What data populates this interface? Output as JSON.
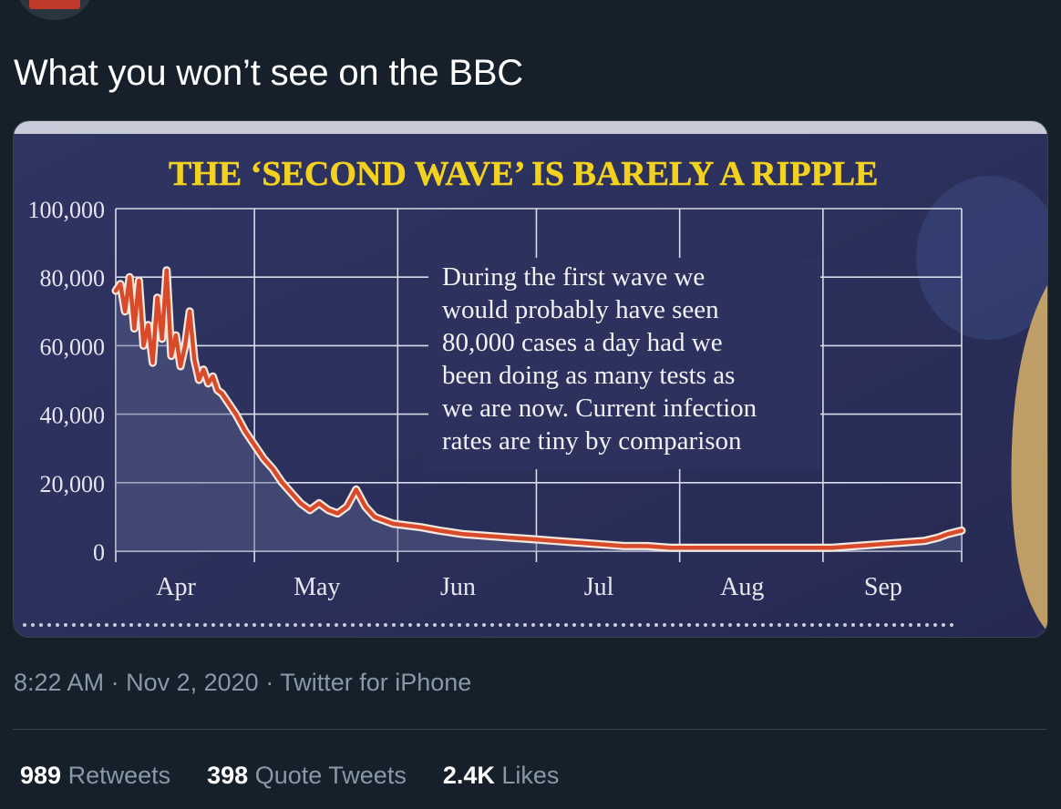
{
  "tweet": {
    "text": "What you won’t see on the BBC",
    "time": "8:22 AM",
    "date": "Nov 2, 2020",
    "source": "Twitter for iPhone",
    "separator": "·"
  },
  "stats": [
    {
      "count": "989",
      "label": "Retweets"
    },
    {
      "count": "398",
      "label": "Quote Tweets"
    },
    {
      "count": "2.4K",
      "label": "Likes"
    }
  ],
  "colors": {
    "background": "#15202b",
    "muted_text": "#8899a6",
    "divider": "#38444d",
    "newspaper_bg": "#2b2f5c",
    "headline_yellow": "#f3d21f",
    "series_red": "#d94a2a"
  },
  "chart_data": {
    "type": "line",
    "title": "THE ‘SECOND WAVE’ IS BARELY A RIPPLE",
    "annotation": [
      "During the first wave we",
      "would probably have seen",
      "80,000 cases a day had we",
      "been doing as many tests as",
      "we are now. Current infection",
      "rates are tiny by comparison"
    ],
    "y_ticks": [
      0,
      20000,
      40000,
      60000,
      80000,
      100000
    ],
    "y_tick_labels": [
      "0",
      "20,000",
      "40,000",
      "60,000",
      "80,000",
      "100,000"
    ],
    "x_tick_labels": [
      "Apr",
      "May",
      "Jun",
      "Jul",
      "Aug",
      "Sep"
    ],
    "ylim": [
      0,
      100000
    ],
    "grid": true,
    "x_unit": "days since 1 Apr",
    "xlim": [
      0,
      183
    ],
    "series": [
      {
        "points": [
          [
            0,
            76000
          ],
          [
            1,
            78000
          ],
          [
            2,
            70000
          ],
          [
            3,
            80000
          ],
          [
            4,
            65000
          ],
          [
            5,
            79000
          ],
          [
            6,
            60000
          ],
          [
            7,
            66000
          ],
          [
            8,
            55000
          ],
          [
            9,
            74000
          ],
          [
            10,
            62000
          ],
          [
            11,
            82000
          ],
          [
            12,
            57000
          ],
          [
            13,
            63000
          ],
          [
            14,
            54000
          ],
          [
            15,
            60000
          ],
          [
            16,
            70000
          ],
          [
            17,
            56000
          ],
          [
            18,
            50000
          ],
          [
            19,
            53000
          ],
          [
            20,
            49000
          ],
          [
            21,
            51000
          ],
          [
            22,
            47000
          ],
          [
            23,
            46000
          ],
          [
            24,
            44000
          ],
          [
            25,
            42000
          ],
          [
            26,
            40000
          ],
          [
            28,
            35000
          ],
          [
            30,
            31000
          ],
          [
            32,
            27000
          ],
          [
            34,
            24000
          ],
          [
            36,
            20000
          ],
          [
            38,
            17000
          ],
          [
            40,
            14000
          ],
          [
            42,
            12000
          ],
          [
            44,
            14000
          ],
          [
            46,
            12000
          ],
          [
            48,
            11000
          ],
          [
            50,
            13000
          ],
          [
            52,
            18000
          ],
          [
            54,
            13000
          ],
          [
            56,
            10000
          ],
          [
            58,
            9000
          ],
          [
            60,
            8000
          ],
          [
            63,
            7500
          ],
          [
            66,
            7000
          ],
          [
            70,
            6000
          ],
          [
            75,
            5000
          ],
          [
            80,
            4500
          ],
          [
            85,
            4000
          ],
          [
            90,
            3500
          ],
          [
            95,
            3000
          ],
          [
            100,
            2500
          ],
          [
            105,
            2000
          ],
          [
            110,
            1500
          ],
          [
            115,
            1500
          ],
          [
            120,
            1000
          ],
          [
            125,
            1000
          ],
          [
            130,
            1000
          ],
          [
            135,
            1000
          ],
          [
            140,
            1000
          ],
          [
            145,
            1000
          ],
          [
            150,
            1000
          ],
          [
            155,
            1000
          ],
          [
            160,
            1500
          ],
          [
            165,
            2000
          ],
          [
            170,
            2500
          ],
          [
            175,
            3000
          ],
          [
            178,
            4000
          ],
          [
            180,
            5000
          ],
          [
            183,
            6000
          ]
        ]
      }
    ]
  }
}
